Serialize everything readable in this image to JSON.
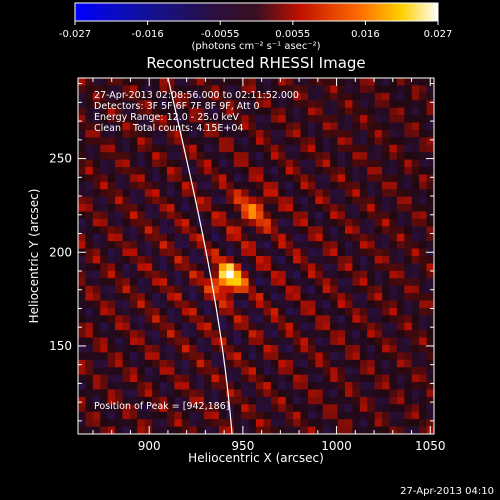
{
  "colorbar": {
    "tick_labels": [
      "-0.027",
      "-0.016",
      "-0.0055",
      "0.0055",
      "0.016",
      "0.027"
    ],
    "unit_label": "(photons cm⁻² s⁻¹ asec⁻²)",
    "range": [
      -0.027,
      0.027
    ]
  },
  "chart_data": {
    "type": "heatmap",
    "title": "Reconstructed RHESSI Image",
    "xlabel": "Heliocentric X (arcsec)",
    "ylabel": "Heliocentric Y (arcsec)",
    "xlim": [
      862,
      1052
    ],
    "ylim": [
      103,
      293
    ],
    "xticks": [
      "900",
      "950",
      "1000",
      "1050"
    ],
    "xtick_values": [
      900,
      950,
      1000,
      1050
    ],
    "yticks": [
      "150",
      "200",
      "250"
    ],
    "ytick_values": [
      150,
      200,
      250
    ],
    "annotations": [
      "27-Apr-2013 02:08:56.000 to 02:11:52.000",
      "Detectors: 3F 5F 6F 7F 8F 9F, Att 0",
      "Energy Range: 12.0 - 25.0 keV",
      "Clean    Total counts: 4.15E+04"
    ],
    "peak_label": "Position of Peak = [942,186]",
    "peak_position": [
      942,
      186
    ],
    "sources": [
      {
        "x": 942,
        "y": 186,
        "peak": 0.027,
        "sigma": 5.5
      },
      {
        "x": 955,
        "y": 222,
        "peak": 0.011,
        "sigma": 7
      }
    ]
  },
  "footer_date": "27-Apr-2013 04:10"
}
